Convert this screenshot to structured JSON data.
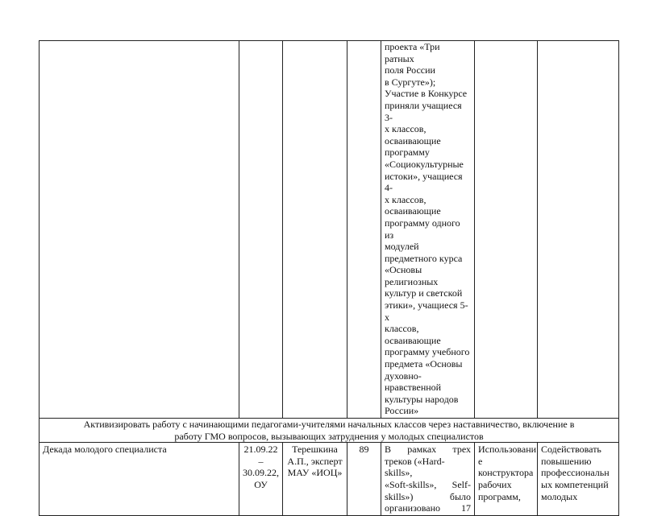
{
  "row_continued": {
    "result_text": "проекта «Три ратных\nполя России\nв Сургуте»);\n Участие в Конкурсе\nприняли учащиеся 3-\nх классов,\nосваивающие\nпрограмму\n«Социокультурные\nистоки», учащиеся 4-\nх классов,\nосваивающие\nпрограмму одного из\nмодулей\nпредметного курса\n«Основы\nрелигиозных\nкультур и светской\nэтики», учащиеся 5-х\nклассов,\nосваивающие\nпрограмму учебного\nпредмета «Основы\nдуховно-\nнравственной\nкультуры народов\nРоссии»"
  },
  "section_heading": "Активизировать работу с начинающими педагогами-учителями начальных классов через наставничество, включение в работу ГМО вопросов, вызывающих затруднения у молодых специалистов",
  "row_event": {
    "name": "Декада молодого специалиста",
    "dates": "21.09.22\n–\n30.09.22,\nОУ",
    "responsible": "Терешкина\nА.П., эксперт\nМАУ «ИОЦ»",
    "participants": "89",
    "result_lines": [
      "В рамках трех",
      "треков («Hard-skills»,",
      "«Soft-skills», Self-",
      "skills») было",
      "организовано 17"
    ],
    "usage": "Использовани\nе\nконструктора\nрабочих\nпрограмм,",
    "effect": "Содействовать\nповышению\nпрофессиональн\nых компетенций\nмолодых"
  }
}
